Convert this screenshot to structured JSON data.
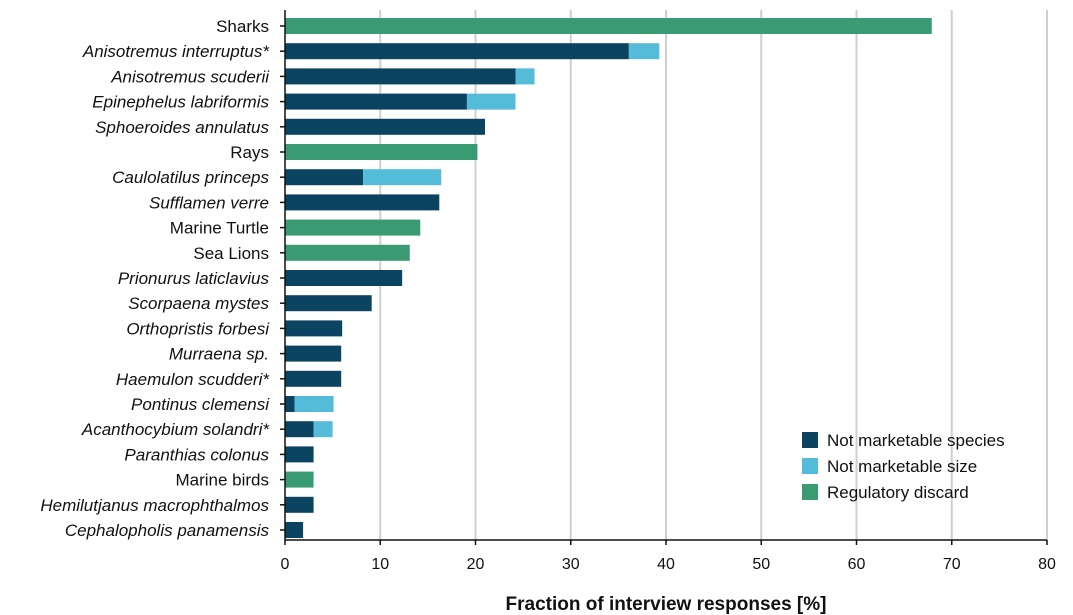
{
  "chart_data": {
    "type": "bar",
    "orientation": "horizontal",
    "stacked": true,
    "title": "",
    "xlabel": "Fraction of interview responses [%]",
    "ylabel": "",
    "xlim": [
      0,
      80
    ],
    "xticks": [
      0,
      10,
      20,
      30,
      40,
      50,
      60,
      70,
      80
    ],
    "grid": "vertical",
    "legend_position": "bottom-right",
    "categories": [
      "Sharks",
      "Anisotremus interruptus*",
      "Anisotremus scuderii",
      "Epinephelus labriformis",
      "Sphoeroides annulatus",
      "Rays",
      "Caulolatilus princeps",
      "Sufflamen verre",
      "Marine Turtle",
      "Sea Lions",
      "Prionurus laticlavius",
      "Scorpaena mystes",
      "Orthopristis forbesi",
      "Murraena sp.",
      "Haemulon scudderi*",
      "Pontinus clemensi",
      "Acanthocybium solandri*",
      "Paranthias colonus",
      "Marine birds",
      "Hemilutjanus macrophthalmos",
      "Cephalopholis panamensis"
    ],
    "italic": [
      false,
      true,
      true,
      true,
      true,
      false,
      true,
      true,
      false,
      false,
      true,
      true,
      true,
      true,
      true,
      true,
      true,
      true,
      false,
      true,
      true
    ],
    "series": [
      {
        "name": "Not marketable species",
        "color": "#0b4460",
        "values": [
          0,
          36.1,
          24.2,
          19.1,
          21.0,
          0,
          8.2,
          16.2,
          0,
          0,
          12.3,
          9.1,
          6.0,
          5.9,
          5.9,
          1.0,
          3.0,
          3.0,
          0,
          3.0,
          1.9
        ]
      },
      {
        "name": "Not marketable size",
        "color": "#54bcd9",
        "values": [
          0,
          3.2,
          2.0,
          5.1,
          0,
          0,
          8.2,
          0,
          0,
          0,
          0,
          0,
          0,
          0,
          0,
          4.1,
          2.0,
          0,
          0,
          0,
          0
        ]
      },
      {
        "name": "Regulatory discard",
        "color": "#3a9b72",
        "values": [
          67.9,
          0,
          0,
          0,
          0,
          20.2,
          0,
          0,
          14.2,
          13.1,
          0,
          0,
          0,
          0,
          0,
          0,
          0,
          0,
          3.0,
          0,
          0
        ]
      }
    ]
  }
}
